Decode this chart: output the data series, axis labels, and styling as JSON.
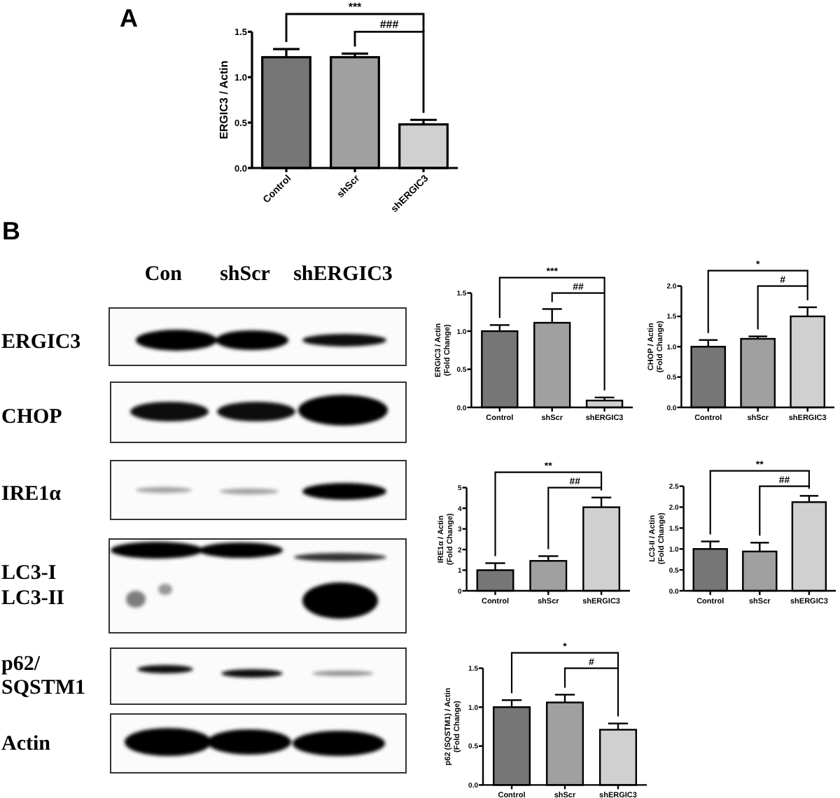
{
  "chart_data": [
    {
      "type": "bar",
      "title": "A",
      "categories": [
        "Control",
        "shScr",
        "shERGIC3"
      ],
      "values": [
        1.22,
        1.22,
        0.48
      ],
      "colors": [
        "#767676",
        "#a0a0a0",
        "#d0d0d0"
      ],
      "errors": [
        [
          1.22,
          1.31
        ],
        [
          1.22,
          1.26
        ],
        [
          0.48,
          0.53
        ]
      ],
      "ylabel": "ERGIC3 / Actin",
      "ylim": [
        0,
        1.5
      ],
      "yticks": [
        {
          "value": 0,
          "label": "0.0"
        },
        {
          "value": 0.5,
          "label": "0.5"
        },
        {
          "value": 1,
          "label": "1.0"
        },
        {
          "value": 1.5,
          "label": "1.5"
        }
      ],
      "annotations": [
        "***",
        "###"
      ]
    },
    {
      "type": "other",
      "title": "B",
      "categories": [
        "Con",
        "shScr",
        "shERGIC3"
      ],
      "y_categories": [
        "ERGIC3",
        "CHOP",
        "IRE1α",
        "LC3-I",
        "LC3-II",
        "p62/\nSQSTM1",
        "Actin"
      ]
    },
    {
      "type": "bar",
      "categories": [
        "Control",
        "shScr",
        "shERGIC3"
      ],
      "values": [
        1.0,
        1.11,
        0.09
      ],
      "colors": [
        "#767676",
        "#a0a0a0",
        "#d0d0d0"
      ],
      "errors": [
        [
          1.0,
          1.08
        ],
        [
          1.11,
          1.29
        ],
        [
          0.09,
          0.13
        ]
      ],
      "ylabel": "ERGIC3 / Actin\n(Fold Change)",
      "ylim": [
        0,
        1.5
      ],
      "yticks": [
        {
          "value": 0,
          "label": "0.0"
        },
        {
          "value": 0.5,
          "label": "0.5"
        },
        {
          "value": 1,
          "label": "1.0"
        },
        {
          "value": 1.5,
          "label": "1.5"
        }
      ],
      "annotations": [
        "***",
        "##"
      ]
    },
    {
      "type": "bar",
      "categories": [
        "Control",
        "shScr",
        "shERGIC3"
      ],
      "values": [
        1.0,
        1.13,
        1.5
      ],
      "colors": [
        "#767676",
        "#a0a0a0",
        "#d0d0d0"
      ],
      "errors": [
        [
          1.0,
          1.11
        ],
        [
          1.13,
          1.17
        ],
        [
          1.5,
          1.65
        ]
      ],
      "ylabel": "CHOP / Actin\n(Fold Change)",
      "ylim": [
        0,
        2
      ],
      "yticks": [
        {
          "value": 0,
          "label": "0.0"
        },
        {
          "value": 0.5,
          "label": "0.5"
        },
        {
          "value": 1,
          "label": "1.0"
        },
        {
          "value": 1.5,
          "label": "1.5"
        },
        {
          "value": 2,
          "label": "2.0"
        }
      ],
      "annotations": [
        "*",
        "#"
      ]
    },
    {
      "type": "bar",
      "categories": [
        "Control",
        "shScr",
        "shERGIC3"
      ],
      "values": [
        1.0,
        1.45,
        4.05
      ],
      "colors": [
        "#767676",
        "#a0a0a0",
        "#d0d0d0"
      ],
      "errors": [
        [
          1.0,
          1.34
        ],
        [
          1.45,
          1.68
        ],
        [
          4.05,
          4.52
        ]
      ],
      "ylabel": "IRE1α / Actin\n(Fold Change)",
      "ylim": [
        0,
        5
      ],
      "yticks": [
        0,
        1,
        2,
        3,
        4,
        5
      ],
      "annotations": [
        "**",
        "##"
      ]
    },
    {
      "type": "bar",
      "categories": [
        "Control",
        "shScr",
        "shERGIC3"
      ],
      "values": [
        1.0,
        0.94,
        2.12
      ],
      "colors": [
        "#767676",
        "#a0a0a0",
        "#d0d0d0"
      ],
      "errors": [
        [
          1.0,
          1.18
        ],
        [
          0.94,
          1.15
        ],
        [
          2.12,
          2.27
        ]
      ],
      "ylabel": "LC3-II / Actin\n(Fold Change)",
      "ylim": [
        0,
        2.5
      ],
      "yticks": [
        {
          "value": 0,
          "label": "0.0"
        },
        {
          "value": 0.5,
          "label": "0.5"
        },
        {
          "value": 1,
          "label": "1.0"
        },
        {
          "value": 1.5,
          "label": "1.5"
        },
        {
          "value": 2,
          "label": "2.0"
        },
        {
          "value": 2.5,
          "label": "2.5"
        }
      ],
      "annotations": [
        "**",
        "##"
      ]
    },
    {
      "type": "bar",
      "categories": [
        "Control",
        "shScr",
        "shERGIC3"
      ],
      "values": [
        1.0,
        1.06,
        0.71
      ],
      "colors": [
        "#767676",
        "#a0a0a0",
        "#d0d0d0"
      ],
      "errors": [
        [
          1.0,
          1.09
        ],
        [
          1.06,
          1.16
        ],
        [
          0.71,
          0.79
        ]
      ],
      "ylabel": "p62 (SQSTM1) / Actin\n(Fold Change)",
      "ylim": [
        0,
        1.5
      ],
      "yticks": [
        {
          "value": 0,
          "label": "0.0"
        },
        {
          "value": 0.5,
          "label": "0.5"
        },
        {
          "value": 1,
          "label": "1.0"
        },
        {
          "value": 1.5,
          "label": "1.5"
        }
      ],
      "annotations": [
        "*",
        "#"
      ]
    }
  ]
}
